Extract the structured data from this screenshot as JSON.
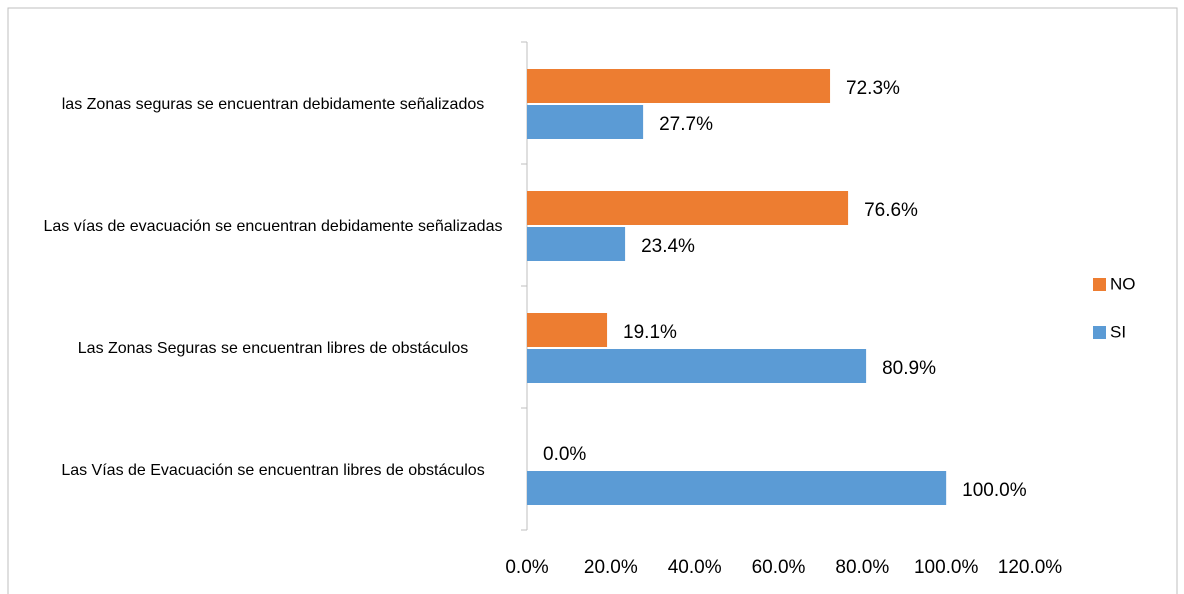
{
  "chart_data": {
    "type": "bar",
    "orientation": "horizontal",
    "categories": [
      "Las Vías de Evacuación se encuentran libres de obstáculos",
      "Las Zonas Seguras se encuentran libres de obstáculos",
      "Las vías de evacuación se encuentran debidamente señalizadas",
      "las Zonas seguras se encuentran debidamente señalizados"
    ],
    "series": [
      {
        "name": "NO",
        "color": "#ed7d31",
        "values": [
          0,
          19.1,
          76.6,
          72.3
        ],
        "value_labels": [
          "0.0%",
          "19.1%",
          "76.6%",
          "72.3%"
        ]
      },
      {
        "name": "SI",
        "color": "#5b9bd5",
        "values": [
          100,
          80.9,
          23.4,
          27.7
        ],
        "value_labels": [
          "100.0%",
          "80.9%",
          "23.4%",
          "27.7%"
        ]
      }
    ],
    "xlim": [
      0,
      120
    ],
    "xticks": [
      {
        "value": 0,
        "label": "0.0%"
      },
      {
        "value": 20,
        "label": "20.0%"
      },
      {
        "value": 40,
        "label": "40.0%"
      },
      {
        "value": 60,
        "label": "60.0%"
      },
      {
        "value": 80,
        "label": "80.0%"
      },
      {
        "value": 100,
        "label": "100.0%"
      },
      {
        "value": 120,
        "label": "120.0%"
      }
    ],
    "grid": false,
    "legend": "right"
  }
}
